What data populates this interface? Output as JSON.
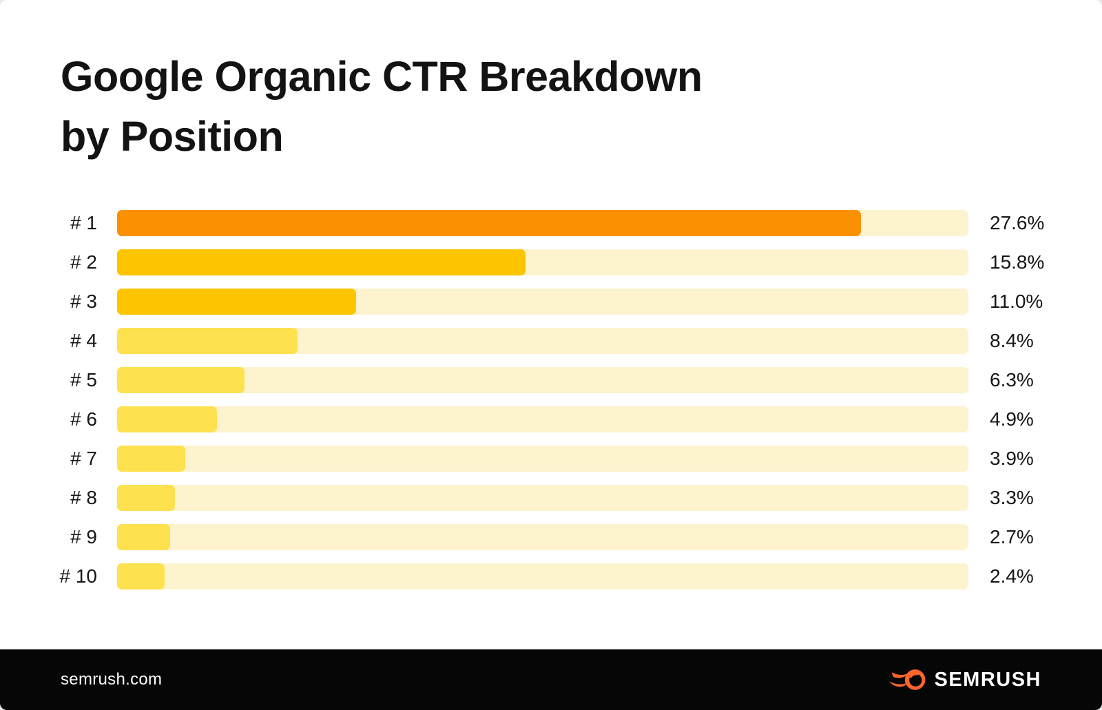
{
  "title": "Google Organic CTR Breakdown\nby Position",
  "footer": {
    "site": "semrush.com",
    "brand": "SEMRUSH"
  },
  "colors": {
    "accent_orange": "#FB9100",
    "gold": "#FDC500",
    "yellow": "#FDE14E",
    "track": "#FDF3CE",
    "footer_bg": "#060606",
    "brand_orange": "#FF642D",
    "text": "#161616"
  },
  "chart_data": {
    "type": "bar",
    "orientation": "horizontal",
    "title": "Google Organic CTR Breakdown by Position",
    "xlabel": "",
    "ylabel": "",
    "categories": [
      "# 1",
      "# 2",
      "# 3",
      "# 4",
      "# 5",
      "# 6",
      "# 7",
      "# 8",
      "# 9",
      "# 10"
    ],
    "values": [
      27.6,
      15.8,
      11.0,
      8.4,
      6.3,
      4.9,
      3.9,
      3.3,
      2.7,
      2.4
    ],
    "value_labels": [
      "27.6%",
      "15.8%",
      "11.0%",
      "8.4%",
      "6.3%",
      "4.9%",
      "3.9%",
      "3.3%",
      "2.7%",
      "2.4%"
    ],
    "bar_colors": [
      "#FB9100",
      "#FDC500",
      "#FDC500",
      "#FDE14E",
      "#FDE14E",
      "#FDE14E",
      "#FDE14E",
      "#FDE14E",
      "#FDE14E",
      "#FDE14E"
    ],
    "track_color": "#FDF3CE",
    "display_width_pct": [
      87.4,
      48.0,
      28.1,
      21.2,
      15.0,
      11.7,
      8.0,
      6.8,
      6.2,
      5.6
    ],
    "grid": false,
    "legend": false,
    "value_label_position": "right-of-track"
  }
}
